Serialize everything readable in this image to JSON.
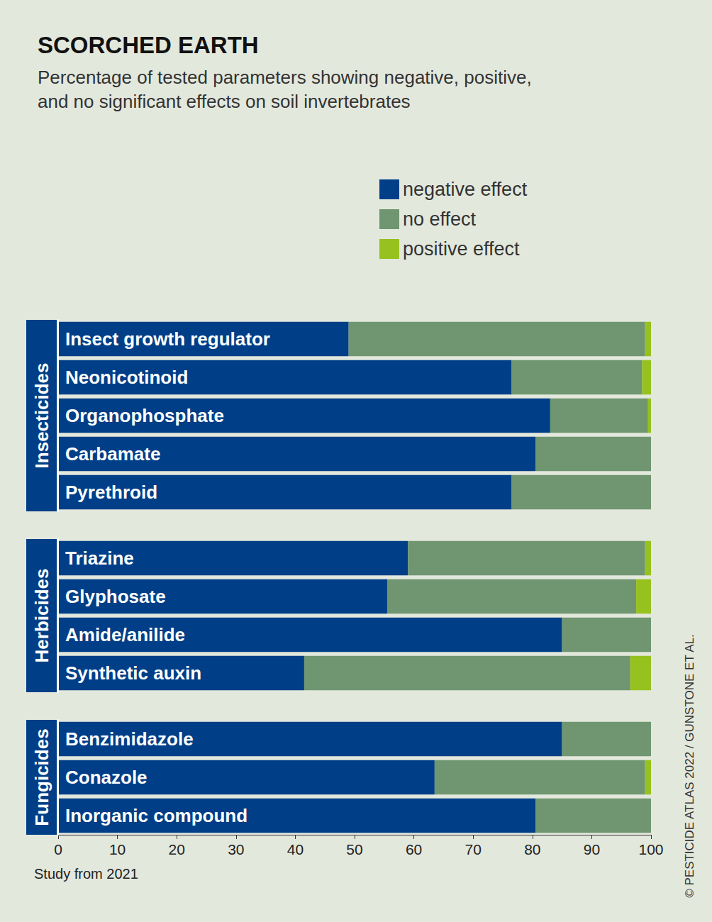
{
  "chart_data": {
    "type": "bar",
    "title": "SCORCHED EARTH",
    "subtitle": "Percentage of tested parameters showing negative, positive, and no significant effects on soil invertebrates",
    "footnote": "Study from 2021",
    "source": "© PESTICIDE ATLAS 2022 / GUNSTONE ET AL.",
    "orientation": "horizontal",
    "stacked": true,
    "grid": false,
    "legend": "top right",
    "categories": [
      "Insect growth regulator",
      "Neonicotinoid",
      "Organophosphate",
      "Carbamate",
      "Pyrethroid",
      "Triazine",
      "Glyphosate",
      "Amide/anilide",
      "Synthetic auxin",
      "Benzimidazole",
      "Conazole",
      "Inorganic compound"
    ],
    "groups": [
      "Insecticides",
      "Insecticides",
      "Insecticides",
      "Insecticides",
      "Insecticides",
      "Herbicides",
      "Herbicides",
      "Herbicides",
      "Herbicides",
      "Fungicides",
      "Fungicides",
      "Fungicides"
    ],
    "series": [
      {
        "name": "negative effect",
        "color": "#003f87",
        "values": [
          49,
          76.5,
          83,
          80.5,
          76.5,
          59,
          55.5,
          85,
          41.5,
          85,
          63.5,
          80.5
        ]
      },
      {
        "name": "no effect",
        "color": "#6f9670",
        "values": [
          50,
          22,
          16.5,
          19.5,
          23.5,
          40,
          42,
          15,
          55,
          15,
          35.5,
          19.5
        ]
      },
      {
        "name": "positive effect",
        "color": "#96c11f",
        "values": [
          1,
          1.5,
          0.5,
          0,
          0,
          1,
          2.5,
          0,
          3.5,
          0,
          1,
          0
        ]
      }
    ],
    "xlim": [
      0,
      100
    ],
    "xticks": [
      0,
      10,
      20,
      30,
      40,
      50,
      60,
      70,
      80,
      90,
      100
    ]
  }
}
